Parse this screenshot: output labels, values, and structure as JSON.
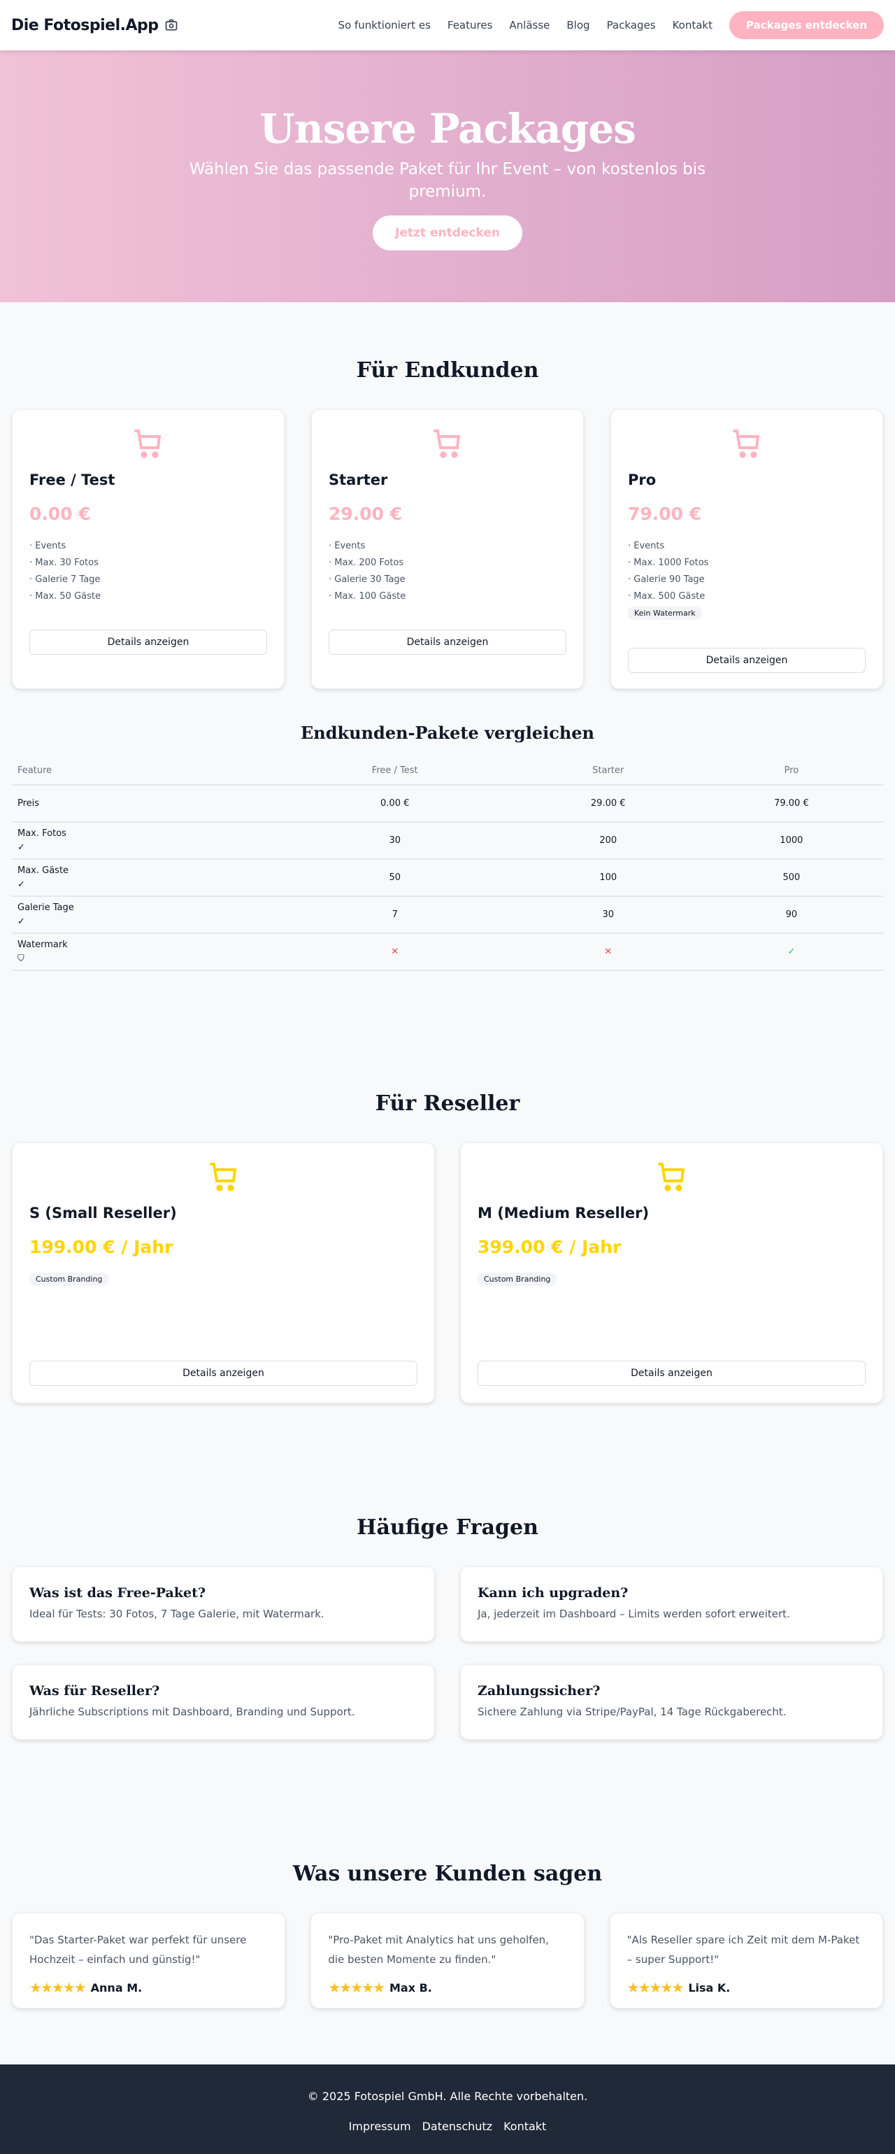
{
  "nav": {
    "logo": "Die Fotospiel.App",
    "links": [
      "So funktioniert es",
      "Features",
      "Anlässe",
      "Blog",
      "Packages",
      "Kontakt"
    ],
    "cta": "Packages entdecken"
  },
  "hero": {
    "title": "Unsere Packages",
    "subtitle": "Wählen Sie das passende Paket für Ihr Event – von kostenlos bis premium.",
    "cta": "Jetzt entdecken"
  },
  "colors": {
    "pink": "#ffb3c1",
    "yellow": "#ffd500",
    "dark": "#1f2937"
  },
  "endkunden": {
    "heading": "Für Endkunden",
    "packages": [
      {
        "name": "Free / Test",
        "price": "0.00 €",
        "features": [
          "Events",
          "Max. 30 Fotos",
          "Galerie 7 Tage",
          "Max. 50 Gäste"
        ],
        "badge": "",
        "button": "Details anzeigen"
      },
      {
        "name": "Starter",
        "price": "29.00 €",
        "features": [
          "Events",
          "Max. 200 Fotos",
          "Galerie 30 Tage",
          "Max. 100 Gäste"
        ],
        "badge": "",
        "button": "Details anzeigen"
      },
      {
        "name": "Pro",
        "price": "79.00 €",
        "features": [
          "Events",
          "Max. 1000 Fotos",
          "Galerie 90 Tage",
          "Max. 500 Gäste"
        ],
        "badge": "Kein Watermark",
        "button": "Details anzeigen"
      }
    ]
  },
  "compare": {
    "heading": "Endkunden-Pakete vergleichen",
    "columns": [
      "Feature",
      "Free / Test",
      "Starter",
      "Pro"
    ],
    "rows": [
      {
        "label": "Preis",
        "icon": "",
        "values": [
          "0.00 €",
          "29.00 €",
          "79.00 €"
        ]
      },
      {
        "label": "Max. Fotos",
        "icon": "check-icon",
        "values": [
          "30",
          "200",
          "1000"
        ]
      },
      {
        "label": "Max. Gäste",
        "icon": "check-icon",
        "values": [
          "50",
          "100",
          "500"
        ]
      },
      {
        "label": "Galerie Tage",
        "icon": "check-icon",
        "values": [
          "7",
          "30",
          "90"
        ]
      },
      {
        "label": "Watermark",
        "icon": "shield-icon",
        "values": [
          "✕",
          "✕",
          "✓"
        ]
      }
    ]
  },
  "reseller": {
    "heading": "Für Reseller",
    "packages": [
      {
        "name": "S (Small Reseller)",
        "price": "199.00 € / Jahr",
        "badge": "Custom Branding",
        "button": "Details anzeigen"
      },
      {
        "name": "M (Medium Reseller)",
        "price": "399.00 € / Jahr",
        "badge": "Custom Branding",
        "button": "Details anzeigen"
      }
    ]
  },
  "faq": {
    "heading": "Häufige Fragen",
    "items": [
      {
        "q": "Was ist das Free-Paket?",
        "a": "Ideal für Tests: 30 Fotos, 7 Tage Galerie, mit Watermark."
      },
      {
        "q": "Kann ich upgraden?",
        "a": "Ja, jederzeit im Dashboard – Limits werden sofort erweitert."
      },
      {
        "q": "Was für Reseller?",
        "a": "Jährliche Subscriptions mit Dashboard, Branding und Support."
      },
      {
        "q": "Zahlungssicher?",
        "a": "Sichere Zahlung via Stripe/PayPal, 14 Tage Rückgaberecht."
      }
    ]
  },
  "testimonials": {
    "heading": "Was unsere Kunden sagen",
    "items": [
      {
        "text": "\"Das Starter-Paket war perfekt für unsere Hochzeit – einfach und günstig!\"",
        "name": "Anna M.",
        "rating": 5
      },
      {
        "text": "\"Pro-Paket mit Analytics hat uns geholfen, die besten Momente zu finden.\"",
        "name": "Max B.",
        "rating": 5
      },
      {
        "text": "\"Als Reseller spare ich Zeit mit dem M-Paket – super Support!\"",
        "name": "Lisa K.",
        "rating": 5
      }
    ]
  },
  "footer": {
    "copyright": "© 2025 Fotospiel GmbH. Alle Rechte vorbehalten.",
    "links": [
      "Impressum",
      "Datenschutz",
      "Kontakt"
    ]
  }
}
